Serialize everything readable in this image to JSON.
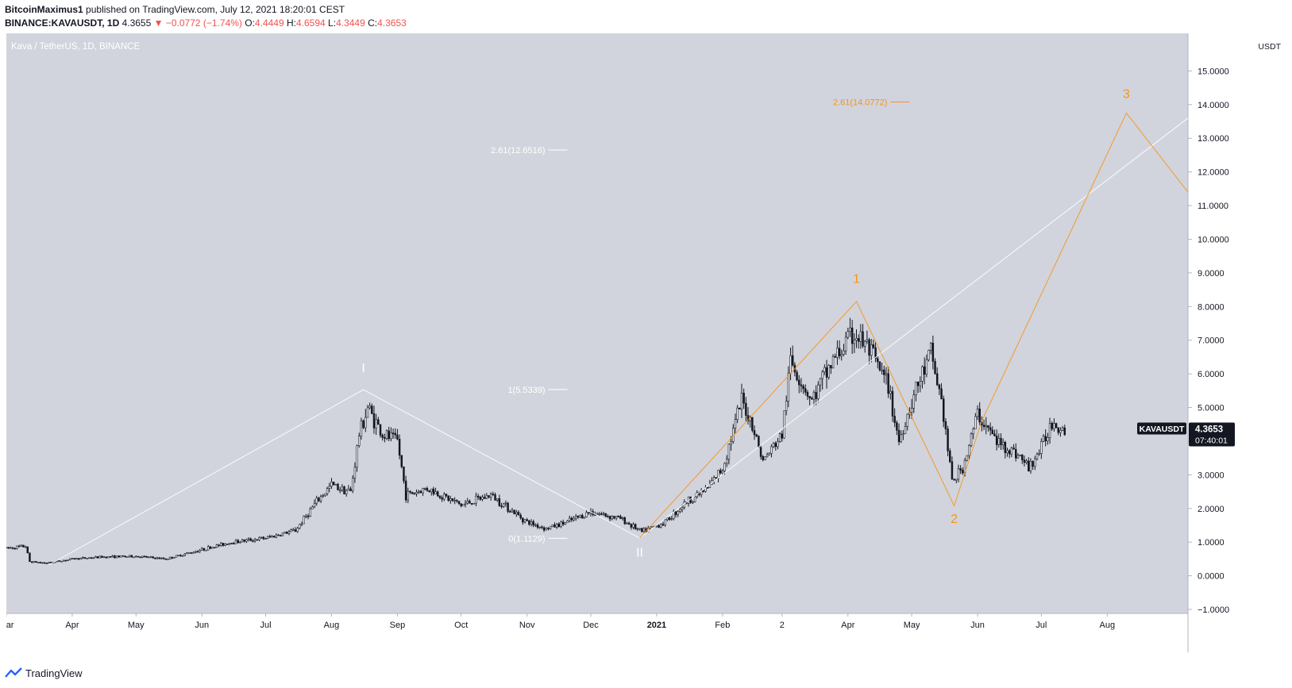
{
  "header": {
    "author": "BitcoinMaximus1",
    "published": "published on TradingView.com, July 12, 2021 18:20:01 CEST",
    "symbol_line": "BINANCE:KAVAUSDT, 1D",
    "last": "4.3655",
    "arrow": "▼",
    "change": "−0.0772 (−1.74%)",
    "o_label": "O:",
    "o": "4.4449",
    "h_label": "H:",
    "h": "4.6594",
    "l_label": "L:",
    "l": "4.3449",
    "c_label": "C:",
    "c": "4.3653"
  },
  "footer": {
    "brand": "TradingView"
  },
  "chart_data": {
    "type": "candlestick",
    "title": "Kava / TetherUS, 1D, BINANCE",
    "currency": "USDT",
    "ylim": [
      -1.0,
      16.0
    ],
    "y_ticks": [
      {
        "v": 15,
        "label": "15.0000"
      },
      {
        "v": 14,
        "label": "14.0000"
      },
      {
        "v": 13,
        "label": "13.0000"
      },
      {
        "v": 12,
        "label": "12.0000"
      },
      {
        "v": 11,
        "label": "11.0000"
      },
      {
        "v": 10,
        "label": "10.0000"
      },
      {
        "v": 9,
        "label": "9.0000"
      },
      {
        "v": 8,
        "label": "8.0000"
      },
      {
        "v": 7,
        "label": "7.0000"
      },
      {
        "v": 6,
        "label": "6.0000"
      },
      {
        "v": 5,
        "label": "5.0000"
      },
      {
        "v": 4,
        "label": "4.0000"
      },
      {
        "v": 3,
        "label": "3.0000"
      },
      {
        "v": 2,
        "label": "2.0000"
      },
      {
        "v": 1,
        "label": "1.0000"
      },
      {
        "v": 0,
        "label": "0.0000"
      },
      {
        "v": -1,
        "label": "−1.0000"
      }
    ],
    "x_start": "2020-03-01",
    "x_end": "2021-09-08",
    "x_ticks": [
      {
        "date": "2020-03-01",
        "label": "Mar"
      },
      {
        "date": "2020-04-01",
        "label": "Apr"
      },
      {
        "date": "2020-05-01",
        "label": "May"
      },
      {
        "date": "2020-06-01",
        "label": "Jun"
      },
      {
        "date": "2020-07-01",
        "label": "Jul"
      },
      {
        "date": "2020-08-01",
        "label": "Aug"
      },
      {
        "date": "2020-09-01",
        "label": "Sep"
      },
      {
        "date": "2020-10-01",
        "label": "Oct"
      },
      {
        "date": "2020-11-01",
        "label": "Nov"
      },
      {
        "date": "2020-12-01",
        "label": "Dec"
      },
      {
        "date": "2021-01-01",
        "label": "2021",
        "bold": true
      },
      {
        "date": "2021-02-01",
        "label": "Feb"
      },
      {
        "date": "2021-03-01",
        "label": "2"
      },
      {
        "date": "2021-04-01",
        "label": "Apr"
      },
      {
        "date": "2021-05-01",
        "label": "May"
      },
      {
        "date": "2021-06-01",
        "label": "Jun"
      },
      {
        "date": "2021-07-01",
        "label": "Jul"
      },
      {
        "date": "2021-08-01",
        "label": "Aug"
      }
    ],
    "price_path": [
      [
        "2020-03-01",
        0.82
      ],
      [
        "2020-03-10",
        0.88
      ],
      [
        "2020-03-12",
        0.42
      ],
      [
        "2020-03-20",
        0.38
      ],
      [
        "2020-04-01",
        0.5
      ],
      [
        "2020-04-15",
        0.56
      ],
      [
        "2020-05-01",
        0.58
      ],
      [
        "2020-05-15",
        0.5
      ],
      [
        "2020-06-01",
        0.78
      ],
      [
        "2020-06-15",
        1.0
      ],
      [
        "2020-07-01",
        1.12
      ],
      [
        "2020-07-15",
        1.35
      ],
      [
        "2020-07-25",
        2.2
      ],
      [
        "2020-08-01",
        2.7
      ],
      [
        "2020-08-10",
        2.5
      ],
      [
        "2020-08-14",
        4.2
      ],
      [
        "2020-08-18",
        5.0
      ],
      [
        "2020-08-25",
        4.2
      ],
      [
        "2020-09-01",
        4.0
      ],
      [
        "2020-09-05",
        2.4
      ],
      [
        "2020-09-15",
        2.6
      ],
      [
        "2020-10-01",
        2.1
      ],
      [
        "2020-10-15",
        2.4
      ],
      [
        "2020-11-01",
        1.6
      ],
      [
        "2020-11-10",
        1.4
      ],
      [
        "2020-11-20",
        1.6
      ],
      [
        "2020-12-01",
        1.9
      ],
      [
        "2020-12-15",
        1.7
      ],
      [
        "2020-12-25",
        1.3
      ],
      [
        "2021-01-05",
        1.6
      ],
      [
        "2021-01-15",
        2.2
      ],
      [
        "2021-01-25",
        2.6
      ],
      [
        "2021-02-01",
        3.2
      ],
      [
        "2021-02-10",
        5.2
      ],
      [
        "2021-02-15",
        4.5
      ],
      [
        "2021-02-20",
        3.4
      ],
      [
        "2021-03-01",
        4.2
      ],
      [
        "2021-03-05",
        6.4
      ],
      [
        "2021-03-15",
        5.2
      ],
      [
        "2021-03-25",
        6.4
      ],
      [
        "2021-04-04",
        7.2
      ],
      [
        "2021-04-10",
        6.8
      ],
      [
        "2021-04-20",
        5.6
      ],
      [
        "2021-04-25",
        4.0
      ],
      [
        "2021-05-01",
        5.2
      ],
      [
        "2021-05-10",
        6.6
      ],
      [
        "2021-05-15",
        5.2
      ],
      [
        "2021-05-20",
        2.8
      ],
      [
        "2021-05-25",
        3.2
      ],
      [
        "2021-06-01",
        4.8
      ],
      [
        "2021-06-10",
        4.0
      ],
      [
        "2021-06-20",
        3.6
      ],
      [
        "2021-06-25",
        3.2
      ],
      [
        "2021-07-01",
        3.8
      ],
      [
        "2021-07-06",
        4.6
      ],
      [
        "2021-07-12",
        4.37
      ]
    ],
    "wave_lines": [
      {
        "name": "white-wave-line",
        "color": "#ffffff",
        "points": [
          [
            "2020-03-21",
            0.32
          ],
          [
            "2020-08-16",
            5.53
          ],
          [
            "2020-12-24",
            1.12
          ]
        ]
      },
      {
        "name": "white-trend-line",
        "color": "#ffffff",
        "points": [
          [
            "2020-12-24",
            1.12
          ],
          [
            "2021-09-08",
            13.6
          ]
        ]
      },
      {
        "name": "orange-wave-line",
        "color": "#f7931a",
        "points": [
          [
            "2020-12-24",
            1.12
          ],
          [
            "2021-04-05",
            8.15
          ],
          [
            "2021-05-21",
            2.08
          ],
          [
            "2021-06-03",
            4.6
          ],
          [
            "2021-08-10",
            13.75
          ],
          [
            "2021-09-08",
            11.4
          ]
        ]
      }
    ],
    "wave_labels": [
      {
        "name": "wave-label-I",
        "text": "I",
        "date": "2020-08-16",
        "v": 6.05,
        "color": "#ffffff"
      },
      {
        "name": "wave-label-II",
        "text": "II",
        "date": "2020-12-24",
        "v": 0.57,
        "color": "#ffffff"
      },
      {
        "name": "wave-label-1",
        "text": "1",
        "date": "2021-04-05",
        "v": 8.7,
        "color": "#f7931a"
      },
      {
        "name": "wave-label-2",
        "text": "2",
        "date": "2021-05-21",
        "v": 1.57,
        "color": "#f7931a"
      },
      {
        "name": "wave-label-3",
        "text": "3",
        "date": "2021-08-10",
        "v": 14.2,
        "color": "#f7931a"
      }
    ],
    "fib_levels": [
      {
        "name": "fib-level-2-61-white",
        "label": "2.61(12.6516)",
        "v": 12.6516,
        "date_end": "2020-11-20",
        "color": "#ffffff"
      },
      {
        "name": "fib-level-1-white",
        "label": "1(5.5339)",
        "v": 5.5339,
        "date_end": "2020-11-20",
        "color": "#ffffff"
      },
      {
        "name": "fib-level-0-white",
        "label": "0(1.1129)",
        "v": 1.1129,
        "date_end": "2020-11-20",
        "color": "#ffffff"
      },
      {
        "name": "fib-level-2-61-orange",
        "label": "2.61(14.0772)",
        "v": 14.0772,
        "date_end": "2021-04-30",
        "color": "#f7931a"
      }
    ],
    "last_price": {
      "symbol": "KAVAUSDT",
      "value": "4.3653",
      "v": 4.3653,
      "countdown": "07:40:01"
    }
  }
}
